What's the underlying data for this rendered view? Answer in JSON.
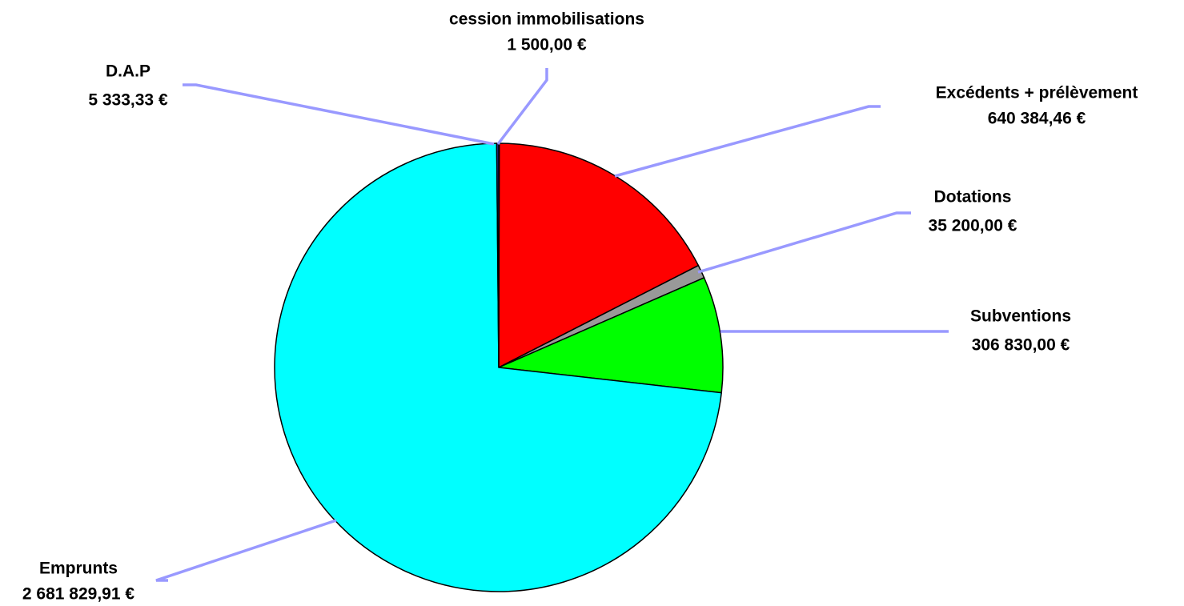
{
  "chart_data": {
    "type": "pie",
    "categories": [
      "cession immobilisations",
      "Excédents + prélèvement",
      "Dotations",
      "Subventions",
      "Emprunts",
      "D.A.P"
    ],
    "values": [
      1500,
      640384.46,
      35200,
      306830,
      2681829.91,
      5333.33
    ],
    "value_labels": [
      "1 500,00 €",
      "640 384,46 €",
      "35 200,00 €",
      "306 830,00 €",
      "2 681 829,91 €",
      "5 333,33 €"
    ],
    "colors": [
      "#993366",
      "#ff0000",
      "#999999",
      "#00ff00",
      "#00ffff",
      "#333399"
    ]
  }
}
